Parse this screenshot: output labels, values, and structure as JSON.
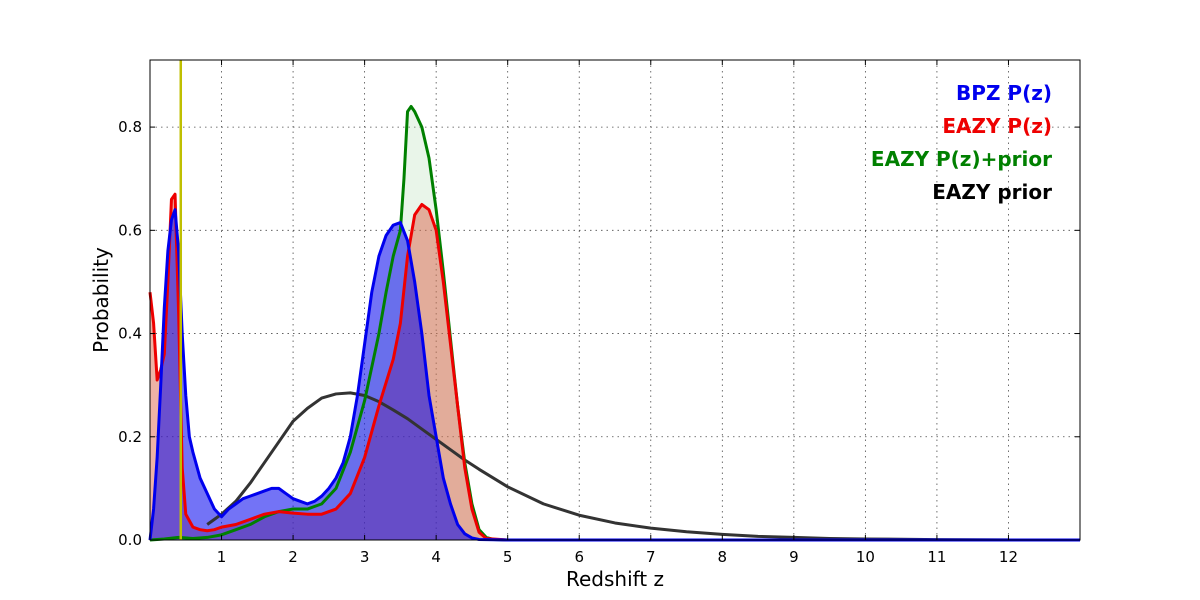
{
  "chart_data": {
    "type": "area",
    "title": "",
    "xlabel": "Redshift z",
    "ylabel": "Probability",
    "xlim": [
      0,
      13
    ],
    "ylim": [
      0,
      0.93
    ],
    "xticks": [
      1,
      2,
      3,
      4,
      5,
      6,
      7,
      8,
      9,
      10,
      11,
      12
    ],
    "yticks": [
      0.0,
      0.2,
      0.4,
      0.6,
      0.8
    ],
    "grid": true,
    "legend_placement": "top-right",
    "vertical_line": {
      "x": 0.43,
      "color": "#bfbf00"
    },
    "series": [
      {
        "name": "BPZ P(z)",
        "color": "#0000ee",
        "fill": "#0000ee",
        "x": [
          0.0,
          0.05,
          0.1,
          0.15,
          0.2,
          0.25,
          0.3,
          0.35,
          0.4,
          0.45,
          0.5,
          0.55,
          0.6,
          0.7,
          0.8,
          0.9,
          1.0,
          1.1,
          1.2,
          1.3,
          1.4,
          1.5,
          1.6,
          1.7,
          1.8,
          1.9,
          2.0,
          2.1,
          2.2,
          2.3,
          2.4,
          2.5,
          2.6,
          2.7,
          2.8,
          2.9,
          3.0,
          3.1,
          3.2,
          3.3,
          3.4,
          3.5,
          3.6,
          3.7,
          3.8,
          3.9,
          4.0,
          4.1,
          4.2,
          4.3,
          4.4,
          4.5,
          4.6,
          5.0,
          6.0,
          8.0,
          10.0,
          12.0,
          13.0
        ],
        "values": [
          0.0,
          0.06,
          0.16,
          0.3,
          0.45,
          0.56,
          0.62,
          0.64,
          0.56,
          0.4,
          0.28,
          0.2,
          0.17,
          0.12,
          0.09,
          0.06,
          0.045,
          0.06,
          0.07,
          0.08,
          0.085,
          0.09,
          0.095,
          0.1,
          0.1,
          0.09,
          0.08,
          0.075,
          0.07,
          0.075,
          0.085,
          0.1,
          0.12,
          0.15,
          0.2,
          0.28,
          0.38,
          0.48,
          0.55,
          0.59,
          0.61,
          0.615,
          0.58,
          0.5,
          0.4,
          0.28,
          0.2,
          0.12,
          0.07,
          0.03,
          0.012,
          0.004,
          0.001,
          0.0,
          0.0,
          0.0,
          0.0,
          0.0,
          0.0
        ]
      },
      {
        "name": "EAZY P(z)",
        "color": "#ee0000",
        "fill": "#d9553a",
        "x": [
          0.0,
          0.05,
          0.1,
          0.15,
          0.2,
          0.25,
          0.3,
          0.35,
          0.4,
          0.45,
          0.5,
          0.6,
          0.7,
          0.8,
          0.9,
          1.0,
          1.2,
          1.4,
          1.6,
          1.8,
          2.0,
          2.2,
          2.4,
          2.6,
          2.8,
          3.0,
          3.2,
          3.4,
          3.5,
          3.6,
          3.7,
          3.8,
          3.9,
          4.0,
          4.1,
          4.2,
          4.3,
          4.4,
          4.5,
          4.6,
          4.7,
          5.0,
          6.0,
          8.0,
          10.0,
          12.0,
          13.0
        ],
        "values": [
          0.48,
          0.42,
          0.31,
          0.33,
          0.36,
          0.5,
          0.66,
          0.67,
          0.44,
          0.14,
          0.05,
          0.025,
          0.02,
          0.018,
          0.02,
          0.025,
          0.03,
          0.04,
          0.05,
          0.055,
          0.052,
          0.05,
          0.05,
          0.06,
          0.09,
          0.16,
          0.26,
          0.35,
          0.42,
          0.55,
          0.63,
          0.65,
          0.64,
          0.6,
          0.5,
          0.38,
          0.26,
          0.14,
          0.06,
          0.015,
          0.003,
          0.0,
          0.0,
          0.0,
          0.0,
          0.0,
          0.0
        ]
      },
      {
        "name": "EAZY P(z)+prior",
        "color": "#008000",
        "fill": "#a7d8a7",
        "x": [
          0.0,
          0.2,
          0.4,
          0.6,
          0.8,
          1.0,
          1.2,
          1.4,
          1.6,
          1.8,
          2.0,
          2.2,
          2.4,
          2.6,
          2.8,
          3.0,
          3.2,
          3.3,
          3.4,
          3.5,
          3.55,
          3.6,
          3.65,
          3.7,
          3.8,
          3.9,
          4.0,
          4.1,
          4.2,
          4.3,
          4.4,
          4.5,
          4.6,
          4.7,
          4.8,
          5.0,
          6.0,
          8.0,
          10.0,
          12.0,
          13.0
        ],
        "values": [
          0.0,
          0.002,
          0.005,
          0.003,
          0.005,
          0.01,
          0.02,
          0.03,
          0.045,
          0.055,
          0.06,
          0.06,
          0.07,
          0.1,
          0.17,
          0.27,
          0.4,
          0.48,
          0.55,
          0.6,
          0.7,
          0.83,
          0.84,
          0.83,
          0.8,
          0.74,
          0.64,
          0.52,
          0.39,
          0.26,
          0.15,
          0.07,
          0.02,
          0.005,
          0.001,
          0.0,
          0.0,
          0.0,
          0.0,
          0.0,
          0.0
        ]
      },
      {
        "name": "EAZY prior",
        "color": "#333333",
        "fill": "none",
        "x": [
          0.8,
          0.9,
          1.0,
          1.2,
          1.4,
          1.6,
          1.8,
          2.0,
          2.2,
          2.4,
          2.6,
          2.8,
          3.0,
          3.2,
          3.4,
          3.6,
          3.8,
          4.0,
          4.2,
          4.4,
          4.6,
          4.8,
          5.0,
          5.5,
          6.0,
          6.5,
          7.0,
          7.5,
          8.0,
          8.5,
          9.0,
          9.5,
          10.0,
          11.0,
          12.0
        ],
        "values": [
          0.03,
          0.04,
          0.05,
          0.075,
          0.11,
          0.15,
          0.19,
          0.23,
          0.255,
          0.275,
          0.283,
          0.285,
          0.28,
          0.268,
          0.252,
          0.235,
          0.215,
          0.195,
          0.175,
          0.155,
          0.137,
          0.12,
          0.103,
          0.07,
          0.048,
          0.033,
          0.023,
          0.016,
          0.011,
          0.007,
          0.005,
          0.003,
          0.002,
          0.0008,
          0.0002
        ]
      }
    ]
  }
}
